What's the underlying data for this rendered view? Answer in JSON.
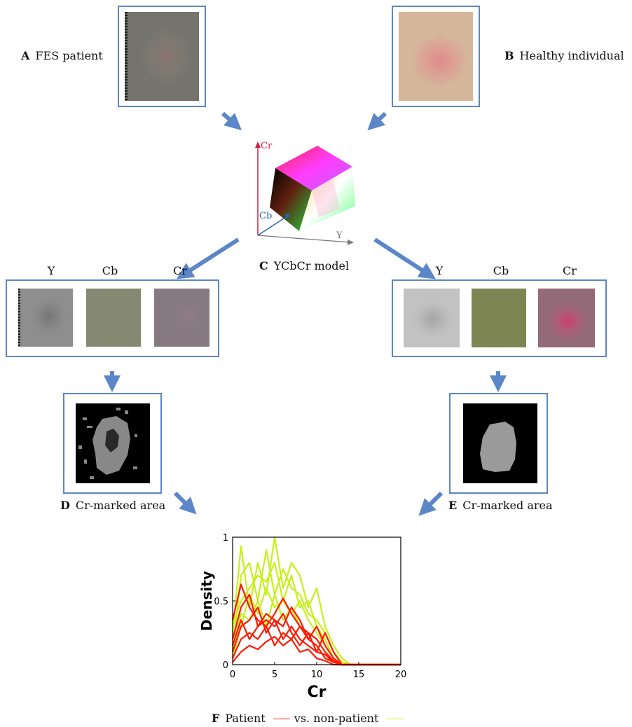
{
  "panels": {
    "A": {
      "letter": "A",
      "label": "FES patient"
    },
    "B": {
      "letter": "B",
      "label": "Healthy individual"
    },
    "C": {
      "letter": "C",
      "label": "YCbCr model"
    },
    "D": {
      "letter": "D",
      "label": "Cr-marked area"
    },
    "E": {
      "letter": "E",
      "label": "Cr-marked area"
    },
    "F": {
      "letter": "F",
      "label_patient": "Patient",
      "label_vs": "vs. non-patient"
    }
  },
  "cube_axes": {
    "cr": "Cr",
    "cb": "Cb",
    "y": "Y"
  },
  "channels_left": [
    "Y",
    "Cb",
    "Cr"
  ],
  "channels_right": [
    "Y",
    "Cb",
    "Cr"
  ],
  "colors": {
    "frame": "#5b86c8",
    "arrow": "#5b86c8",
    "patient_series": "#ff1a00",
    "non_patient_series": "#c7f01a",
    "cr_axis": "#cc2244",
    "cb_axis": "#2266aa"
  },
  "chart_data": {
    "type": "line",
    "xlabel": "Cr",
    "ylabel": "Density",
    "xlim": [
      0,
      20
    ],
    "ylim": [
      0,
      1
    ],
    "xticks": [
      "0",
      "5",
      "10",
      "15",
      "20"
    ],
    "yticks": [
      "0",
      "0.5",
      "1"
    ],
    "x": [
      0,
      1,
      2,
      3,
      4,
      5,
      6,
      7,
      8,
      9,
      10,
      11,
      12,
      13,
      14,
      15,
      16,
      17,
      18,
      19,
      20
    ],
    "series": [
      {
        "group": "non-patient",
        "values": [
          0.25,
          0.93,
          0.45,
          0.8,
          0.55,
          1.0,
          0.6,
          0.8,
          0.7,
          0.45,
          0.6,
          0.3,
          0.15,
          0.05,
          0,
          0,
          0,
          0,
          0,
          0,
          0
        ]
      },
      {
        "group": "non-patient",
        "values": [
          0.1,
          0.7,
          0.8,
          0.5,
          0.9,
          0.55,
          0.75,
          0.6,
          0.55,
          0.4,
          0.35,
          0.25,
          0.1,
          0.02,
          0,
          0,
          0,
          0,
          0,
          0,
          0
        ]
      },
      {
        "group": "non-patient",
        "values": [
          0.3,
          0.5,
          0.6,
          0.7,
          0.65,
          0.8,
          0.5,
          0.7,
          0.45,
          0.5,
          0.3,
          0.2,
          0.05,
          0,
          0,
          0,
          0,
          0,
          0,
          0,
          0
        ]
      },
      {
        "group": "non-patient",
        "values": [
          0.05,
          0.3,
          0.55,
          0.4,
          0.6,
          0.45,
          0.5,
          0.4,
          0.5,
          0.35,
          0.25,
          0.15,
          0.05,
          0,
          0,
          0,
          0,
          0,
          0,
          0,
          0
        ]
      },
      {
        "group": "non-patient",
        "values": [
          0.15,
          0.4,
          0.35,
          0.5,
          0.3,
          0.55,
          0.35,
          0.45,
          0.3,
          0.25,
          0.2,
          0.1,
          0.02,
          0,
          0,
          0,
          0,
          0,
          0,
          0,
          0
        ]
      },
      {
        "group": "patient",
        "values": [
          0.35,
          0.63,
          0.45,
          0.35,
          0.3,
          0.4,
          0.52,
          0.4,
          0.3,
          0.25,
          0.2,
          0.1,
          0.03,
          0,
          0,
          0,
          0,
          0,
          0,
          0,
          0
        ]
      },
      {
        "group": "patient",
        "values": [
          0.2,
          0.45,
          0.55,
          0.3,
          0.4,
          0.35,
          0.3,
          0.45,
          0.35,
          0.2,
          0.3,
          0.15,
          0.05,
          0,
          0,
          0,
          0,
          0,
          0,
          0,
          0
        ]
      },
      {
        "group": "patient",
        "values": [
          0.1,
          0.3,
          0.35,
          0.45,
          0.25,
          0.35,
          0.2,
          0.3,
          0.2,
          0.15,
          0.1,
          0.25,
          0.1,
          0,
          0,
          0,
          0,
          0,
          0,
          0,
          0
        ]
      },
      {
        "group": "patient",
        "values": [
          0.05,
          0.2,
          0.25,
          0.2,
          0.3,
          0.15,
          0.25,
          0.2,
          0.3,
          0.2,
          0.15,
          0.05,
          0.02,
          0,
          0,
          0,
          0,
          0,
          0,
          0,
          0
        ]
      },
      {
        "group": "patient",
        "values": [
          0.15,
          0.35,
          0.2,
          0.3,
          0.35,
          0.3,
          0.4,
          0.25,
          0.15,
          0.25,
          0.1,
          0.08,
          0.02,
          0,
          0,
          0,
          0,
          0,
          0,
          0,
          0
        ]
      },
      {
        "group": "patient",
        "values": [
          0.02,
          0.1,
          0.15,
          0.12,
          0.18,
          0.22,
          0.15,
          0.2,
          0.1,
          0.12,
          0.05,
          0.03,
          0,
          0,
          0,
          0,
          0,
          0,
          0,
          0,
          0
        ]
      }
    ]
  }
}
